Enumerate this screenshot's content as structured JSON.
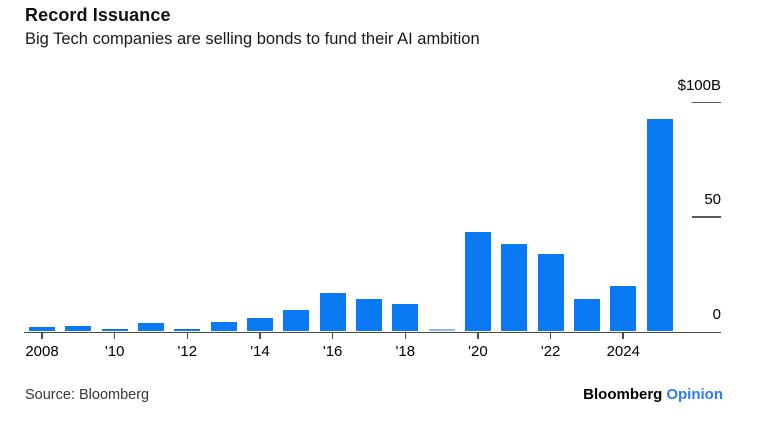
{
  "header": {
    "title": "Record Issuance",
    "subtitle": "Big Tech companies are selling bonds to fund their AI ambition"
  },
  "chart_data": {
    "type": "bar",
    "title": "Record Issuance",
    "subtitle": "Big Tech companies are selling bonds to fund their AI ambition",
    "unit": "billions of US dollars",
    "categories": [
      2008,
      2009,
      2010,
      2011,
      2012,
      2013,
      2014,
      2015,
      2016,
      2017,
      2018,
      2019,
      2020,
      2021,
      2022,
      2023,
      2024,
      2025
    ],
    "values": [
      2,
      2.5,
      1,
      3.5,
      1,
      4,
      6,
      9.5,
      17,
      14,
      12,
      1,
      43.5,
      38,
      34,
      14,
      20,
      93
    ],
    "ylim": [
      0,
      100
    ],
    "yticks": [
      {
        "value": 0,
        "label": "0"
      },
      {
        "value": 50,
        "label": "50"
      },
      {
        "value": 100,
        "label": "$100B"
      }
    ],
    "xticks": [
      {
        "year": 2008,
        "label": "2008"
      },
      {
        "year": 2010,
        "label": "'10"
      },
      {
        "year": 2012,
        "label": "'12"
      },
      {
        "year": 2014,
        "label": "'14"
      },
      {
        "year": 2016,
        "label": "'16"
      },
      {
        "year": 2018,
        "label": "'18"
      },
      {
        "year": 2020,
        "label": "'20"
      },
      {
        "year": 2022,
        "label": "'22"
      },
      {
        "year": 2024,
        "label": "2024"
      }
    ],
    "bar_color": "#0a7af4",
    "bar_color_overrides": {
      "2019": "#8abaf8"
    },
    "grid": false,
    "legend_position": "none",
    "ytick_side": "right"
  },
  "footer": {
    "source": "Source: Bloomberg",
    "brand": "Bloomberg",
    "brand_suffix": "Opinion"
  },
  "colors": {
    "bar": "#0a7af4",
    "axis": "#4a4a4a",
    "text": "#000000",
    "brand_suffix_blue": "#2b7cf7",
    "background": "#ffffff"
  }
}
